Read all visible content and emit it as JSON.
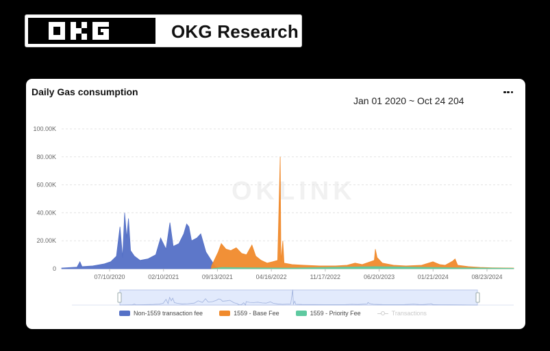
{
  "brand": {
    "logo_text": "OKG",
    "title": "OKG Research"
  },
  "card": {
    "title": "Daily Gas consumption",
    "date_range": "Jan 01 2020 ~ Oct 24 204",
    "watermark": "OKLINK"
  },
  "colors": {
    "non1559": "#5470c6",
    "base_fee": "#f08a2c",
    "priority_fee": "#5ec9a0",
    "transactions": "#cccccc"
  },
  "chart_data": {
    "type": "area",
    "title": "Daily Gas consumption",
    "ylim": [
      0,
      100000
    ],
    "y_ticks": [
      "0",
      "20.00K",
      "40.00K",
      "60.00K",
      "80.00K",
      "100.00K"
    ],
    "x_ticks": [
      "07/10/2020",
      "02/10/2021",
      "09/13/2021",
      "04/16/2022",
      "11/17/2022",
      "06/20/2023",
      "01/21/2024",
      "08/23/2024"
    ],
    "x_range": [
      "2020-01-01",
      "2024-10-24"
    ],
    "grid": true,
    "legend_position": "bottom",
    "series": [
      {
        "name": "Non-1559 transaction fee",
        "points": [
          [
            "2020-01-01",
            500
          ],
          [
            "2020-03-01",
            1200
          ],
          [
            "2020-03-12",
            5000
          ],
          [
            "2020-03-20",
            1500
          ],
          [
            "2020-05-01",
            2000
          ],
          [
            "2020-06-15",
            3500
          ],
          [
            "2020-07-10",
            5000
          ],
          [
            "2020-08-01",
            9000
          ],
          [
            "2020-08-15",
            30000
          ],
          [
            "2020-08-25",
            8000
          ],
          [
            "2020-09-02",
            40000
          ],
          [
            "2020-09-10",
            22000
          ],
          [
            "2020-09-17",
            36000
          ],
          [
            "2020-09-25",
            13000
          ],
          [
            "2020-10-10",
            9000
          ],
          [
            "2020-11-01",
            6000
          ],
          [
            "2020-12-01",
            7000
          ],
          [
            "2021-01-01",
            10000
          ],
          [
            "2021-01-20",
            22000
          ],
          [
            "2021-02-10",
            14000
          ],
          [
            "2021-02-25",
            33000
          ],
          [
            "2021-03-10",
            16000
          ],
          [
            "2021-04-01",
            18000
          ],
          [
            "2021-04-20",
            25000
          ],
          [
            "2021-05-01",
            32000
          ],
          [
            "2021-05-10",
            30000
          ],
          [
            "2021-05-20",
            20000
          ],
          [
            "2021-06-10",
            22000
          ],
          [
            "2021-06-25",
            25000
          ],
          [
            "2021-07-15",
            12000
          ],
          [
            "2021-08-05",
            6000
          ],
          [
            "2021-08-20",
            1500
          ],
          [
            "2021-09-10",
            0
          ],
          [
            "2024-10-24",
            0
          ]
        ]
      },
      {
        "name": "1559 - Base Fee",
        "points": [
          [
            "2021-08-05",
            0
          ],
          [
            "2021-08-06",
            2000
          ],
          [
            "2021-09-01",
            12000
          ],
          [
            "2021-09-13",
            18000
          ],
          [
            "2021-10-01",
            14000
          ],
          [
            "2021-10-20",
            13000
          ],
          [
            "2021-11-10",
            15000
          ],
          [
            "2021-12-01",
            11000
          ],
          [
            "2021-12-20",
            10000
          ],
          [
            "2022-01-10",
            17000
          ],
          [
            "2022-01-25",
            9000
          ],
          [
            "2022-02-15",
            6000
          ],
          [
            "2022-03-10",
            4000
          ],
          [
            "2022-04-01",
            5000
          ],
          [
            "2022-04-20",
            6000
          ],
          [
            "2022-04-30",
            80000
          ],
          [
            "2022-05-03",
            5000
          ],
          [
            "2022-05-10",
            20000
          ],
          [
            "2022-05-15",
            4000
          ],
          [
            "2022-06-15",
            3000
          ],
          [
            "2022-08-01",
            2500
          ],
          [
            "2022-10-01",
            2000
          ],
          [
            "2022-12-01",
            2000
          ],
          [
            "2023-01-15",
            2500
          ],
          [
            "2023-02-15",
            4000
          ],
          [
            "2023-03-15",
            3000
          ],
          [
            "2023-05-01",
            6000
          ],
          [
            "2023-05-05",
            14000
          ],
          [
            "2023-05-12",
            8000
          ],
          [
            "2023-06-01",
            4000
          ],
          [
            "2023-07-15",
            2500
          ],
          [
            "2023-09-01",
            2000
          ],
          [
            "2023-11-01",
            2500
          ],
          [
            "2023-12-15",
            5000
          ],
          [
            "2024-01-10",
            3000
          ],
          [
            "2024-02-01",
            2500
          ],
          [
            "2024-03-01",
            5500
          ],
          [
            "2024-03-10",
            7000
          ],
          [
            "2024-03-20",
            2500
          ],
          [
            "2024-05-01",
            1500
          ],
          [
            "2024-06-15",
            1000
          ],
          [
            "2024-08-01",
            700
          ],
          [
            "2024-10-24",
            500
          ]
        ]
      },
      {
        "name": "1559 - Priority Fee",
        "points": [
          [
            "2021-08-05",
            0
          ],
          [
            "2021-09-15",
            900
          ],
          [
            "2022-01-01",
            700
          ],
          [
            "2022-06-01",
            500
          ],
          [
            "2023-05-05",
            1500
          ],
          [
            "2024-03-10",
            700
          ],
          [
            "2024-10-24",
            300
          ]
        ]
      },
      {
        "name": "Transactions",
        "points": []
      }
    ]
  }
}
